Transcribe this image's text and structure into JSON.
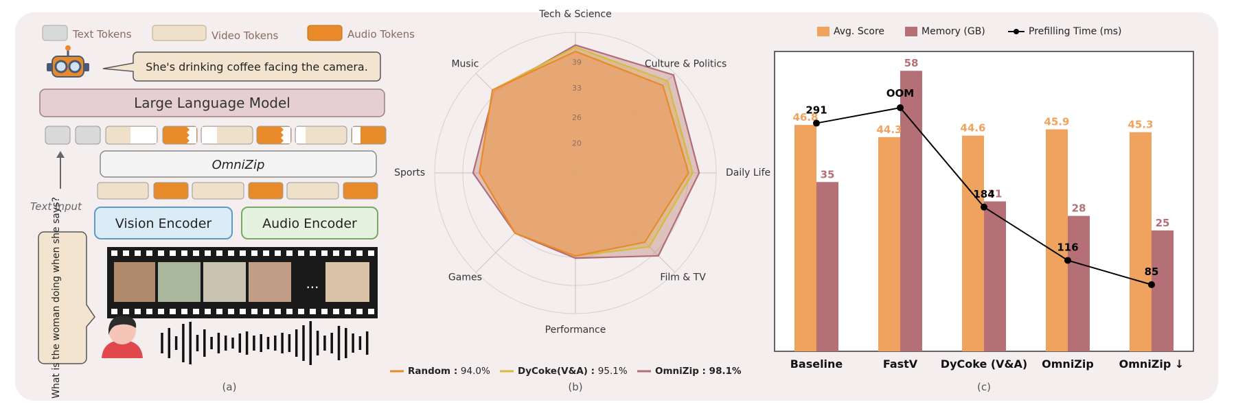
{
  "panel_a": {
    "legend": [
      "Text Tokens",
      "Video Tokens",
      "Audio Tokens"
    ],
    "caption": "She's drinking coffee facing the camera.",
    "llm_label": "Large Language Model",
    "omnizip_label": "OmniZip",
    "text_input_label": "Text Input",
    "vision_encoder_label": "Vision Encoder",
    "audio_encoder_label": "Audio Encoder",
    "question": "What is the woman doing when she says?",
    "ellipsis": "...",
    "panel_label": "(a)",
    "colors": {
      "text_token": "#d9d9d9",
      "video_token": "#efe0c9",
      "audio_token": "#e98a2a",
      "llm": "#e6cfd2",
      "vision": "#dcecf7",
      "audio": "#e6f2e0"
    }
  },
  "panel_b": {
    "panel_label": "(b)",
    "chart_data": {
      "type": "radar",
      "axes": [
        "Tech & Science",
        "Culture & Politics",
        "Daily Life",
        "Film & TV",
        "Performance",
        "Games",
        "Sports",
        "Music"
      ],
      "ticks": [
        20,
        26,
        33,
        39
      ],
      "series": [
        {
          "name": "Random",
          "percent": "94.0%",
          "color": "#e98a2a",
          "values": [
            41.5,
            42,
            39.5,
            36,
            32.5,
            33,
            35.5,
            40.5
          ]
        },
        {
          "name": "DyCoke(V&A)",
          "percent": "95.1%",
          "color": "#d9b840",
          "values": [
            42.5,
            43.5,
            40.5,
            37.5,
            32.5,
            33,
            35.5,
            40.5
          ]
        },
        {
          "name": "OmniZip",
          "percent": "98.1%",
          "color": "#b36b76",
          "values": [
            43,
            45.5,
            42,
            40.5,
            33,
            33,
            37,
            40
          ]
        }
      ]
    }
  },
  "panel_c": {
    "panel_label": "(c)",
    "chart_data": {
      "type": "bar",
      "categories": [
        "Baseline",
        "FastV",
        "DyCoke (V&A)",
        "OmniZip",
        "OmniZip ↓"
      ],
      "series": [
        {
          "name": "Avg. Score",
          "color": "#f0a35e",
          "values": [
            46.8,
            44.3,
            44.6,
            45.9,
            45.3
          ]
        },
        {
          "name": "Memory (GB)",
          "color": "#b57077",
          "values": [
            35,
            58,
            31,
            28,
            25
          ]
        }
      ],
      "line": {
        "name": "Prefilling Time (ms)",
        "color": "#000000",
        "values": [
          291,
          null,
          184,
          116,
          85
        ],
        "labels": [
          "291",
          "OOM",
          "184",
          "116",
          "85"
        ]
      }
    }
  }
}
